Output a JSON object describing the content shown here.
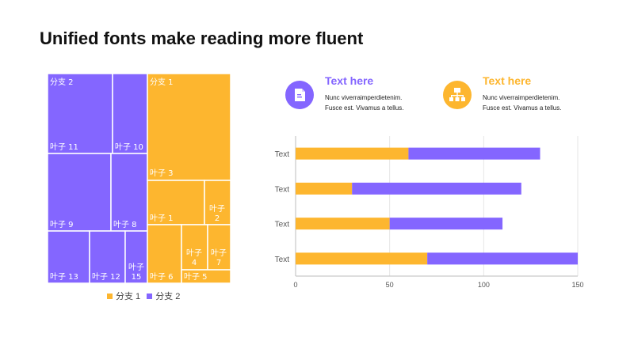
{
  "slide": {
    "title": "Unified fonts make reading more fluent"
  },
  "colors": {
    "branch1": "#FDB62F",
    "branch2": "#8466FF"
  },
  "info_cards": [
    {
      "heading": "Text here",
      "line1": "Nunc viverraimperdietenim.",
      "line2": "Fusce est. Vivamus a tellus.",
      "icon": "document-icon",
      "color": "#8466FF"
    },
    {
      "heading": "Text here",
      "line1": "Nunc viverraimperdietenim.",
      "line2": "Fusce est. Vivamus a tellus.",
      "icon": "org-chart-icon",
      "color": "#FDB62F"
    }
  ],
  "legend": [
    {
      "label": "分支 1",
      "color": "#FDB62F"
    },
    {
      "label": "分支 2",
      "color": "#8466FF"
    }
  ],
  "chart_data": [
    {
      "type": "treemap",
      "branches": [
        {
          "name": "分支 2",
          "color": "#8466FF",
          "leaves": [
            "叶子 11",
            "叶子 10",
            "叶子 9",
            "叶子 8",
            "叶子 13",
            "叶子 12",
            "叶子 15"
          ]
        },
        {
          "name": "分支 1",
          "color": "#FDB62F",
          "leaves": [
            "叶子 3",
            "叶子 1",
            "叶子 2",
            "叶子 6",
            "叶子 4",
            "叶子 7",
            "叶子 5"
          ]
        }
      ]
    },
    {
      "type": "bar",
      "orientation": "horizontal",
      "stacked": true,
      "categories": [
        "Text",
        "Text",
        "Text",
        "Text"
      ],
      "series": [
        {
          "values": [
            60,
            30,
            50,
            70
          ],
          "color": "#FDB62F"
        },
        {
          "values": [
            70,
            90,
            60,
            80
          ],
          "color": "#8466FF"
        }
      ],
      "xlim": [
        0,
        150
      ],
      "xticks": [
        0,
        50,
        100,
        150
      ],
      "grid": true
    }
  ]
}
